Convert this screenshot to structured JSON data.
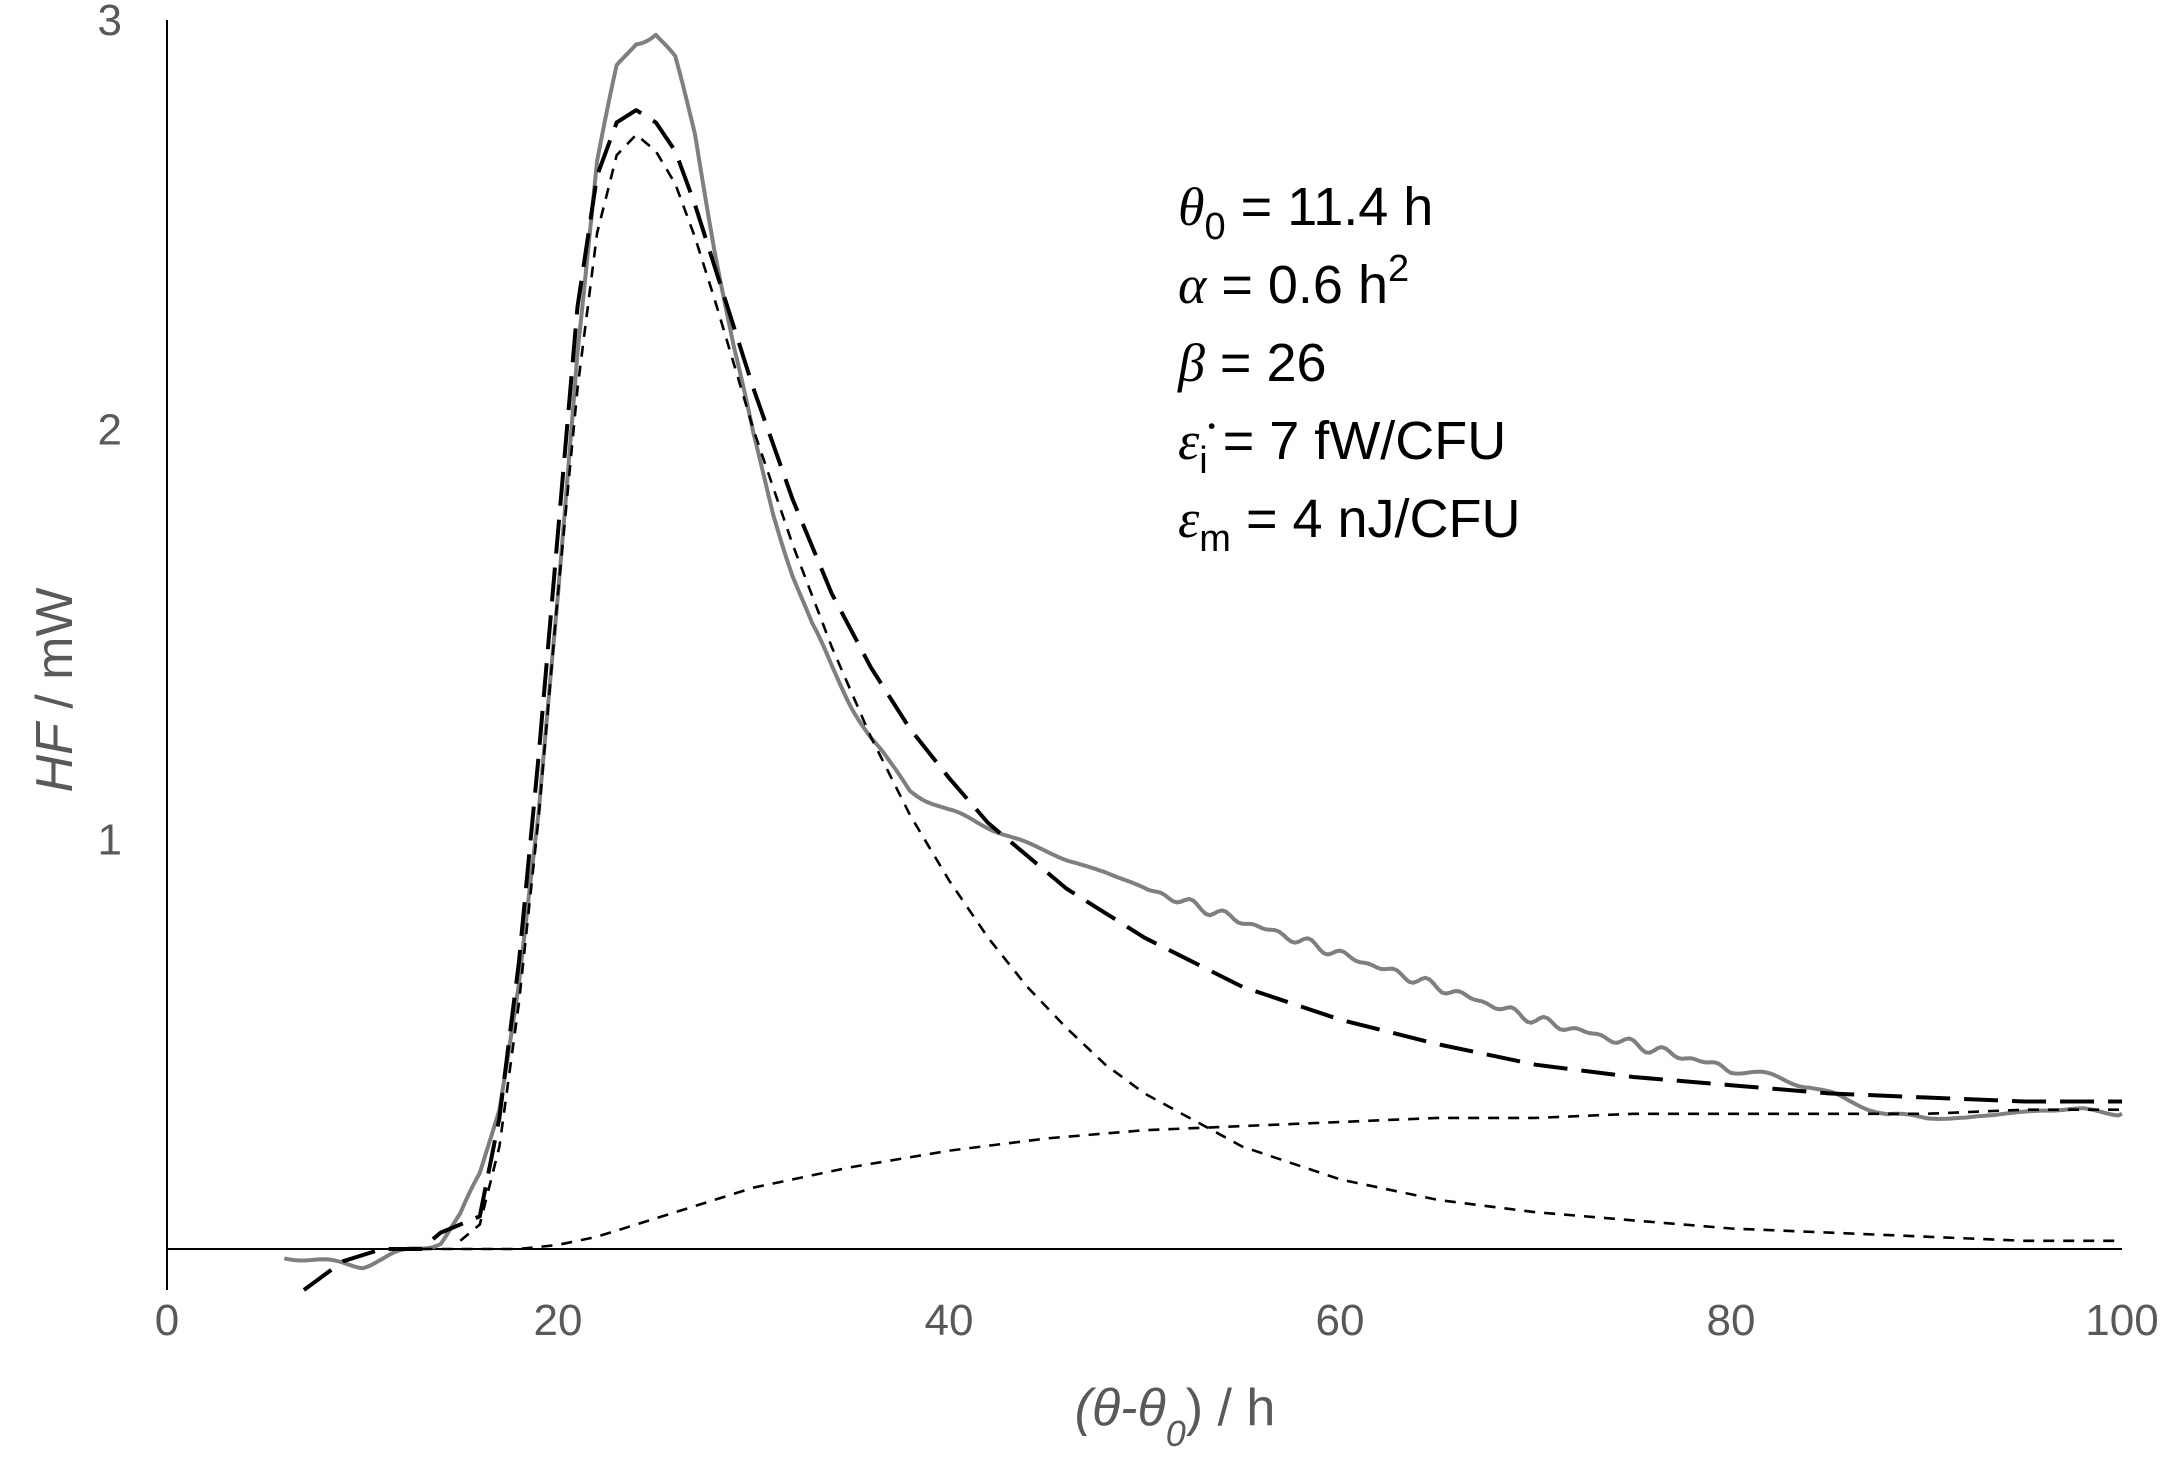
{
  "chart_data": {
    "type": "line",
    "title": "",
    "xlabel": {
      "var": "(θ-θ",
      "sub": "0",
      "rest": ") / h"
    },
    "ylabel": {
      "var": "HF",
      "rest": " / mW"
    },
    "xlim": [
      0,
      100
    ],
    "ylim": [
      -0.1,
      3.0
    ],
    "xticks": [
      0,
      20,
      40,
      60,
      80,
      100
    ],
    "yticks": [
      1,
      2,
      3
    ],
    "grid": false,
    "legend": "none",
    "colors": {
      "measured": "#7f7f7f",
      "model_total": "#000000",
      "model_components": "#000000",
      "axis": "#000000",
      "text": "#595959"
    },
    "annotations": [
      {
        "symbol": "θ",
        "sub": "0",
        "text": " = 11.4 h",
        "sup": ""
      },
      {
        "symbol": "α",
        "sub": "",
        "text": " = 0.6 h",
        "sup": "2"
      },
      {
        "symbol": "β",
        "sub": "",
        "text": " = 26",
        "sup": ""
      },
      {
        "symbol": "ε̇",
        "sub": "i",
        "text": " =   7 fW/CFU",
        "sup": ""
      },
      {
        "symbol": "ε",
        "sub": "m",
        "text": "  =  4 nJ/CFU",
        "sup": ""
      }
    ],
    "series": [
      {
        "style": "solid-gray",
        "x": [
          6,
          8,
          10,
          12,
          14,
          15,
          16,
          17,
          18,
          19,
          20,
          21,
          22,
          23,
          24,
          25,
          26,
          27,
          28,
          29,
          30,
          31,
          32,
          33,
          34,
          35,
          36,
          37,
          38,
          40,
          42,
          44,
          46,
          48,
          50,
          55,
          60,
          65,
          70,
          75,
          80,
          84,
          86,
          88,
          90,
          92,
          94,
          96,
          98,
          100
        ],
        "y": [
          -0.02,
          -0.03,
          -0.04,
          -0.01,
          0.02,
          0.08,
          0.18,
          0.35,
          0.65,
          1.05,
          1.6,
          2.2,
          2.65,
          2.88,
          2.95,
          2.97,
          2.9,
          2.72,
          2.45,
          2.2,
          1.98,
          1.8,
          1.65,
          1.52,
          1.42,
          1.33,
          1.25,
          1.18,
          1.12,
          1.07,
          1.03,
          0.99,
          0.95,
          0.92,
          0.88,
          0.8,
          0.72,
          0.64,
          0.56,
          0.5,
          0.44,
          0.4,
          0.36,
          0.33,
          0.32,
          0.32,
          0.33,
          0.34,
          0.34,
          0.33
        ]
      },
      {
        "style": "long-dash",
        "x": [
          7,
          9,
          11,
          13,
          14,
          15,
          16,
          17,
          18,
          19,
          20,
          21,
          22,
          23,
          24,
          25,
          26,
          27,
          28,
          30,
          32,
          34,
          36,
          38,
          40,
          42,
          44,
          46,
          50,
          55,
          60,
          65,
          70,
          75,
          80,
          85,
          90,
          95,
          100
        ],
        "y": [
          -0.1,
          -0.03,
          0.0,
          0.0,
          0.04,
          0.06,
          0.08,
          0.32,
          0.7,
          1.2,
          1.75,
          2.3,
          2.62,
          2.75,
          2.78,
          2.75,
          2.68,
          2.55,
          2.4,
          2.1,
          1.83,
          1.6,
          1.42,
          1.27,
          1.15,
          1.04,
          0.96,
          0.88,
          0.76,
          0.64,
          0.56,
          0.5,
          0.45,
          0.42,
          0.4,
          0.38,
          0.37,
          0.36,
          0.36
        ]
      },
      {
        "style": "short-dash",
        "x": [
          15,
          16,
          17,
          18,
          19,
          20,
          21,
          22,
          23,
          24,
          25,
          26,
          27,
          28,
          30,
          32,
          34,
          36,
          38,
          40,
          42,
          44,
          46,
          48,
          50,
          55,
          60,
          65,
          70,
          75,
          80,
          85,
          90,
          95,
          100
        ],
        "y": [
          0.02,
          0.06,
          0.25,
          0.6,
          1.05,
          1.6,
          2.1,
          2.48,
          2.67,
          2.72,
          2.68,
          2.6,
          2.47,
          2.32,
          2.0,
          1.72,
          1.47,
          1.25,
          1.06,
          0.9,
          0.76,
          0.64,
          0.54,
          0.45,
          0.38,
          0.25,
          0.17,
          0.12,
          0.09,
          0.07,
          0.05,
          0.04,
          0.03,
          0.02,
          0.02
        ]
      },
      {
        "style": "short-dash",
        "x": [
          12,
          14,
          16,
          18,
          20,
          22,
          24,
          26,
          28,
          30,
          35,
          40,
          45,
          50,
          55,
          60,
          65,
          70,
          75,
          80,
          85,
          90,
          95,
          100
        ],
        "y": [
          0.0,
          0.0,
          0.0,
          0.0,
          0.01,
          0.03,
          0.06,
          0.09,
          0.12,
          0.15,
          0.2,
          0.24,
          0.27,
          0.29,
          0.3,
          0.31,
          0.32,
          0.32,
          0.33,
          0.33,
          0.33,
          0.33,
          0.34,
          0.34
        ]
      }
    ]
  }
}
